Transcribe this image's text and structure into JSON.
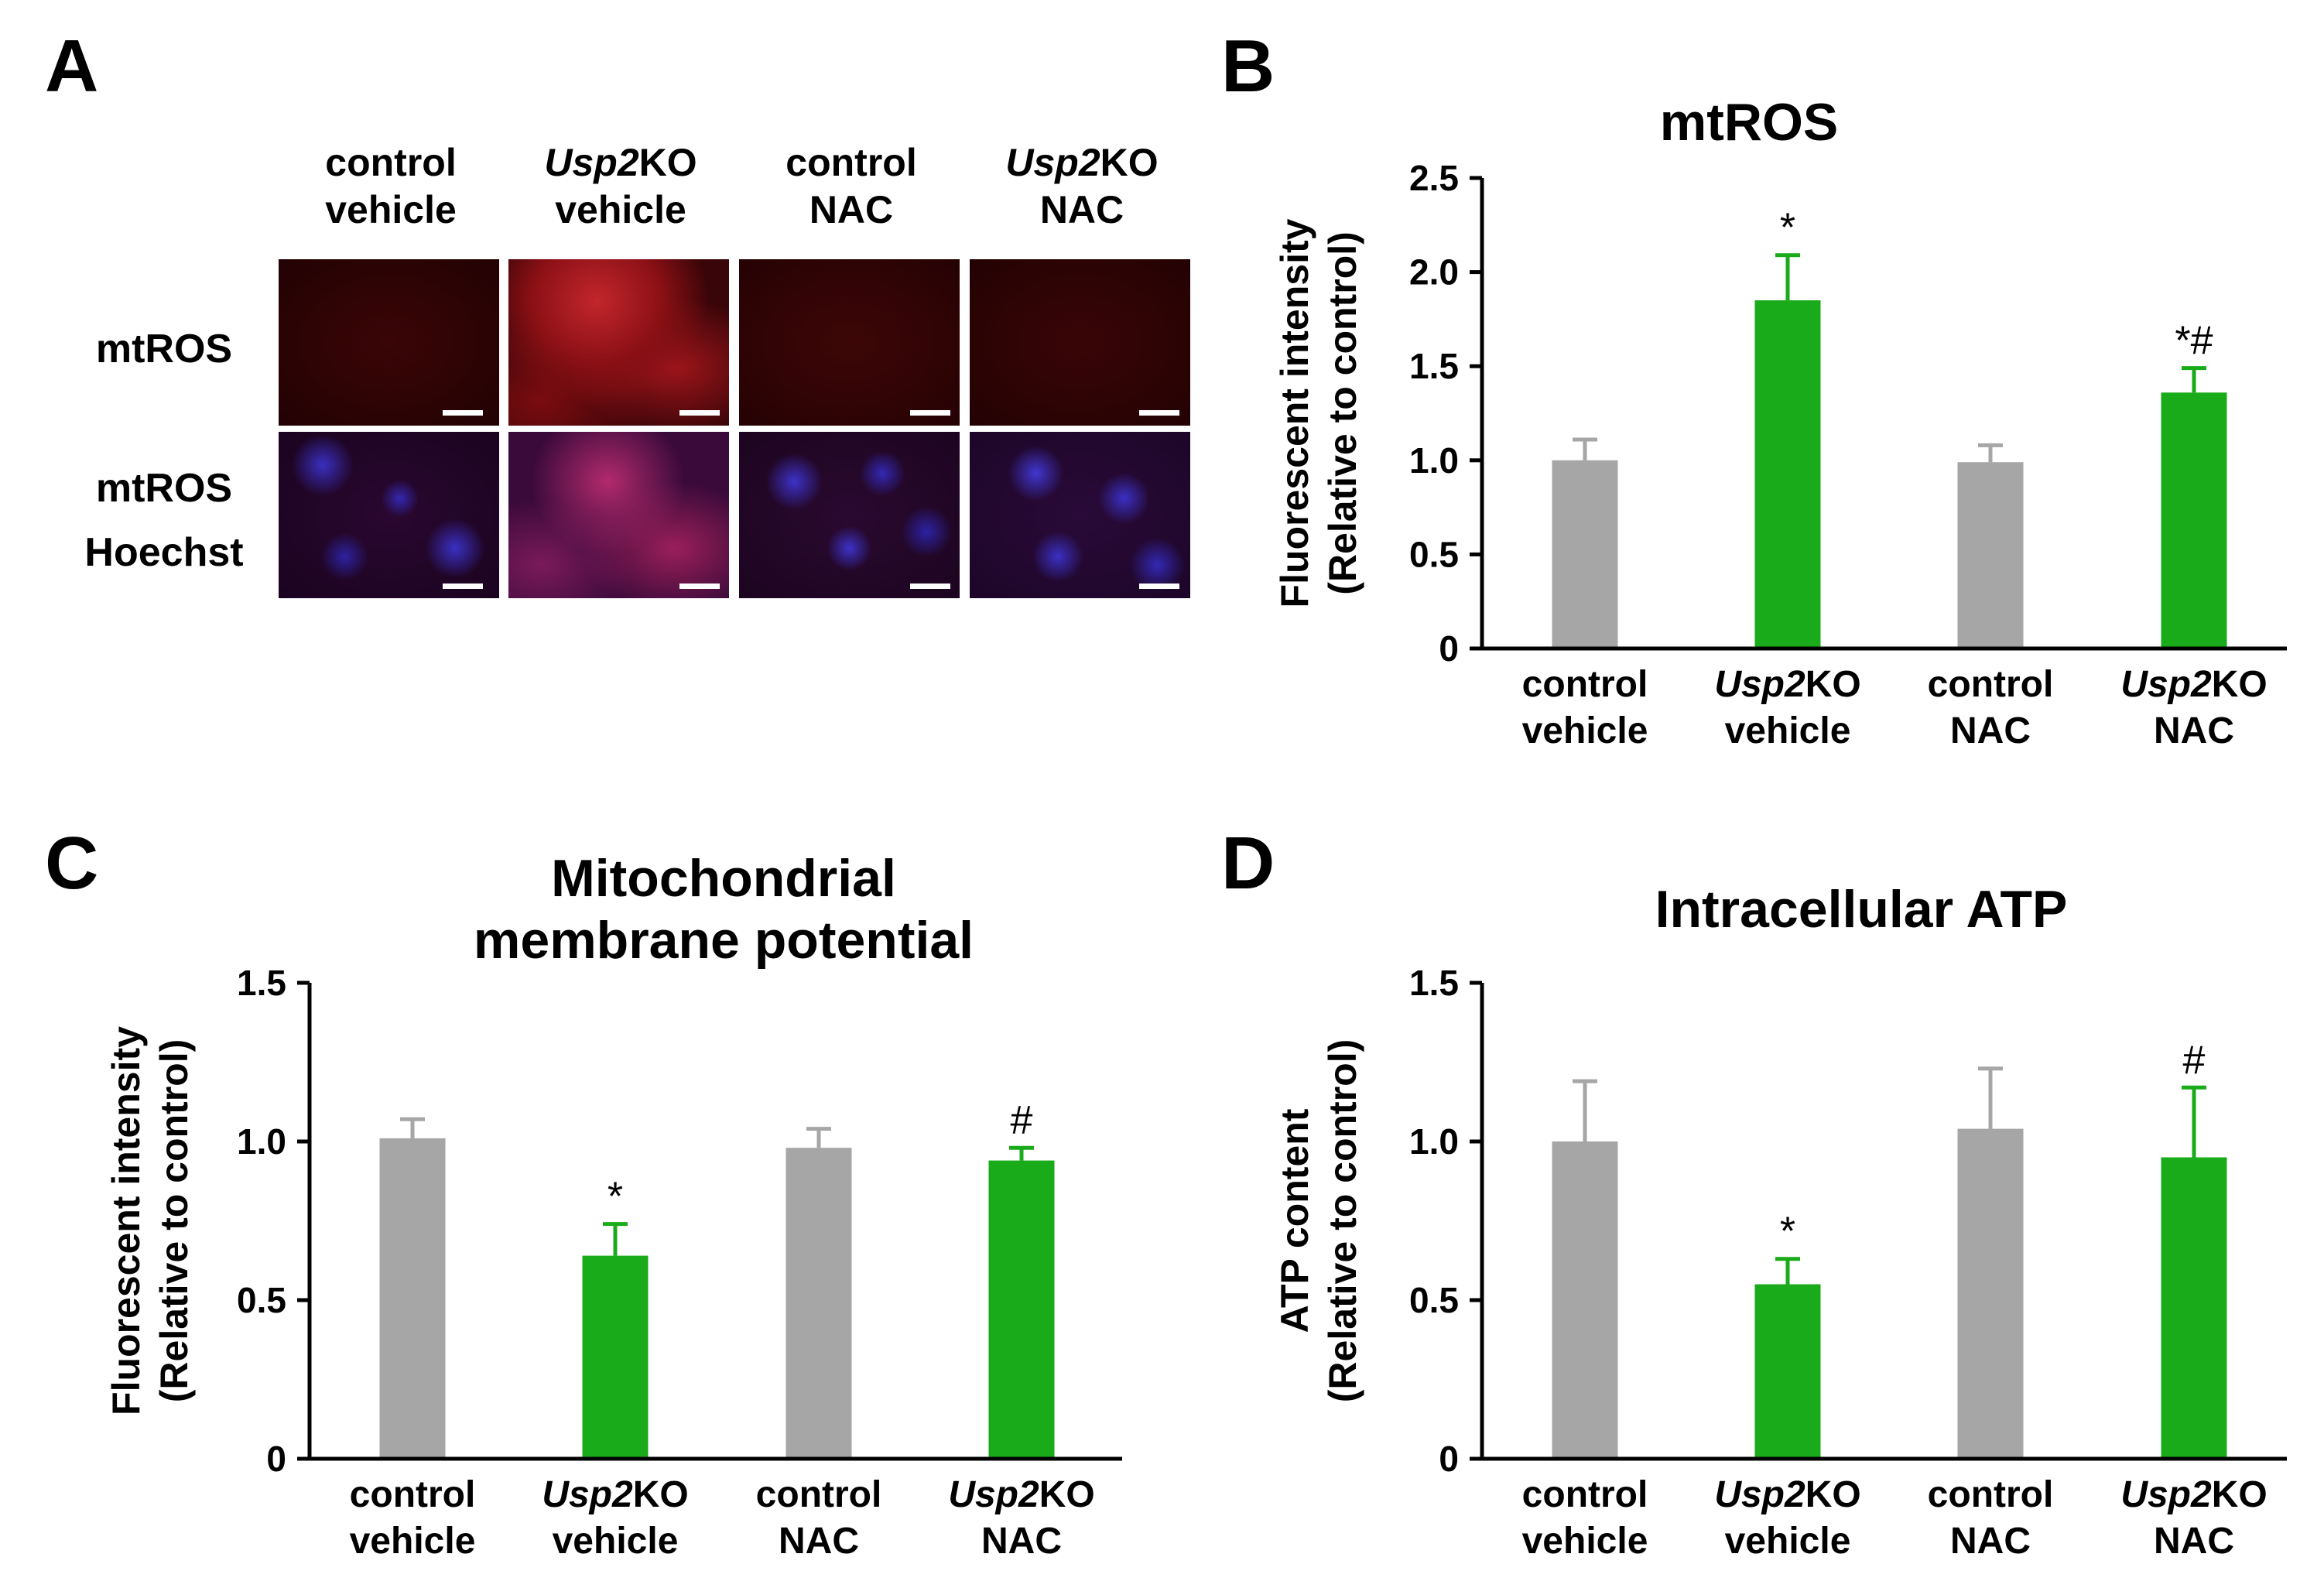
{
  "panelA": {
    "letter": "A",
    "columns": [
      {
        "line1": "control",
        "line2": "vehicle"
      },
      {
        "line1_italic": "Usp2",
        "line1_rest": "KO",
        "line2": "vehicle"
      },
      {
        "line1": "control",
        "line2": "NAC"
      },
      {
        "line1_italic": "Usp2",
        "line1_rest": "KO",
        "line2": "NAC"
      }
    ],
    "rows": [
      {
        "line1": "mtROS",
        "line2": ""
      },
      {
        "line1": "mtROS",
        "line2": "Hoechst"
      }
    ]
  },
  "colors": {
    "control": "#a6a6a6",
    "ko": "#1aab1a",
    "axis": "#000000"
  },
  "chart_data": [
    {
      "letter": "B",
      "type": "bar",
      "title": [
        "mtROS"
      ],
      "ylabel": [
        "Fluorescent intensity",
        "(Relative to control)"
      ],
      "ylim": [
        0,
        2.5
      ],
      "yticks": [
        "0",
        "0.5",
        "1.0",
        "1.5",
        "2.0",
        "2.5"
      ],
      "categories": [
        {
          "italic": "",
          "rest": "control",
          "line2": "vehicle"
        },
        {
          "italic": "Usp2",
          "rest": "KO",
          "line2": "vehicle"
        },
        {
          "italic": "",
          "rest": "control",
          "line2": "NAC"
        },
        {
          "italic": "Usp2",
          "rest": "KO",
          "line2": "NAC"
        }
      ],
      "values": [
        1.0,
        1.85,
        0.99,
        1.36
      ],
      "errors": [
        0.11,
        0.24,
        0.09,
        0.13
      ],
      "groups": [
        "control",
        "ko",
        "control",
        "ko"
      ],
      "annotations": [
        "",
        "*",
        "",
        "*#"
      ]
    },
    {
      "letter": "C",
      "type": "bar",
      "title": [
        "Mitochondrial",
        "membrane potential"
      ],
      "ylabel": [
        "Fluorescent intensity",
        "(Relative to control)"
      ],
      "ylim": [
        0,
        1.5
      ],
      "yticks": [
        "0",
        "0.5",
        "1.0",
        "1.5"
      ],
      "categories": [
        {
          "italic": "",
          "rest": "control",
          "line2": "vehicle"
        },
        {
          "italic": "Usp2",
          "rest": "KO",
          "line2": "vehicle"
        },
        {
          "italic": "",
          "rest": "control",
          "line2": "NAC"
        },
        {
          "italic": "Usp2",
          "rest": "KO",
          "line2": "NAC"
        }
      ],
      "values": [
        1.01,
        0.64,
        0.98,
        0.94
      ],
      "errors": [
        0.06,
        0.1,
        0.06,
        0.04
      ],
      "groups": [
        "control",
        "ko",
        "control",
        "ko"
      ],
      "annotations": [
        "",
        "*",
        "",
        "#"
      ]
    },
    {
      "letter": "D",
      "type": "bar",
      "title": [
        "Intracellular ATP"
      ],
      "ylabel": [
        "ATP content",
        "(Relative to control)"
      ],
      "ylim": [
        0,
        1.5
      ],
      "yticks": [
        "0",
        "0.5",
        "1.0",
        "1.5"
      ],
      "categories": [
        {
          "italic": "",
          "rest": "control",
          "line2": "vehicle"
        },
        {
          "italic": "Usp2",
          "rest": "KO",
          "line2": "vehicle"
        },
        {
          "italic": "",
          "rest": "control",
          "line2": "NAC"
        },
        {
          "italic": "Usp2",
          "rest": "KO",
          "line2": "NAC"
        }
      ],
      "values": [
        1.0,
        0.55,
        1.04,
        0.95
      ],
      "errors": [
        0.19,
        0.08,
        0.19,
        0.22
      ],
      "groups": [
        "control",
        "ko",
        "control",
        "ko"
      ],
      "annotations": [
        "",
        "*",
        "",
        "#"
      ]
    }
  ]
}
